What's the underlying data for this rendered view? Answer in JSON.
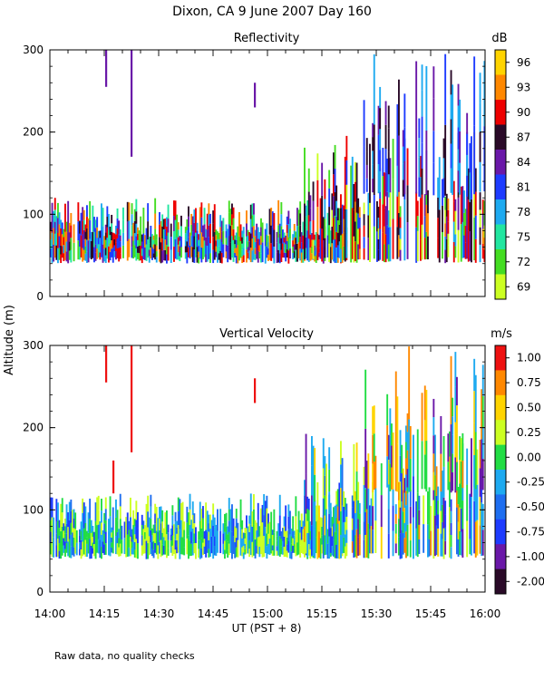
{
  "title": "Dixon, CA  9 June 2007  Day 160",
  "ylabel": "Altitude  (m)",
  "xlabel": "UT  (PST + 8)",
  "footnote": "Raw data, no quality checks",
  "x_ticks": [
    "14:00",
    "14:15",
    "14:30",
    "14:45",
    "15:00",
    "15:15",
    "15:30",
    "15:45",
    "16:00"
  ],
  "x_range_minutes": [
    0,
    120
  ],
  "chart_data": [
    {
      "type": "heatmap",
      "title": "Reflectivity",
      "units": "dB",
      "ylim": [
        0,
        300
      ],
      "y_ticks": [
        0,
        100,
        200,
        300
      ],
      "colorbar_labels": [
        "96",
        "93",
        "90",
        "87",
        "84",
        "81",
        "78",
        "75",
        "72",
        "69"
      ],
      "colorbar_colors": [
        "#ffd400",
        "#ff8800",
        "#ee0000",
        "#2a0a28",
        "#6a18a8",
        "#1e3cff",
        "#1eaaf0",
        "#22e6a0",
        "#44dd22",
        "#ccff22"
      ],
      "bands": [
        {
          "alt": [
            40,
            120
          ],
          "t_min": 0,
          "t_max": 82,
          "density": 0.92,
          "levels": [
            8,
            7,
            6,
            5,
            4,
            3,
            2,
            1
          ]
        },
        {
          "alt": [
            40,
            200
          ],
          "t_min": 70,
          "t_max": 120,
          "density": 0.6,
          "levels": [
            6,
            5,
            4,
            3,
            3,
            2,
            2,
            1,
            9,
            8
          ]
        },
        {
          "alt": [
            120,
            300
          ],
          "t_min": 86,
          "t_max": 120,
          "density": 0.3,
          "levels": [
            6,
            5,
            4,
            3
          ]
        }
      ],
      "streaks": [
        {
          "t": 15.5,
          "alt": [
            255,
            300
          ],
          "level": 4
        },
        {
          "t": 22.5,
          "alt": [
            170,
            300
          ],
          "level": 4
        },
        {
          "t": 56.5,
          "alt": [
            230,
            260
          ],
          "level": 4
        }
      ]
    },
    {
      "type": "heatmap",
      "title": "Vertical Velocity",
      "units": "m/s",
      "ylim": [
        0,
        300
      ],
      "y_ticks": [
        0,
        100,
        200,
        300
      ],
      "colorbar_labels": [
        "1.00",
        "0.75",
        "0.50",
        "0.25",
        "0.00",
        "-0.25",
        "-0.50",
        "-0.75",
        "-1.00",
        "-2.00"
      ],
      "colorbar_colors": [
        "#ee1111",
        "#ff8800",
        "#ffd400",
        "#ccff22",
        "#22dd44",
        "#1eaaf0",
        "#1e6ef0",
        "#1e3cff",
        "#6a18a8",
        "#2a0a28"
      ],
      "bands": [
        {
          "alt": [
            40,
            120
          ],
          "t_min": 0,
          "t_max": 82,
          "density": 0.92,
          "levels": [
            6,
            5,
            4,
            3,
            7,
            5,
            4,
            3
          ]
        },
        {
          "alt": [
            40,
            200
          ],
          "t_min": 70,
          "t_max": 120,
          "density": 0.6,
          "levels": [
            5,
            4,
            3,
            6,
            2,
            1,
            7,
            8,
            4,
            5
          ]
        },
        {
          "alt": [
            120,
            300
          ],
          "t_min": 86,
          "t_max": 120,
          "density": 0.3,
          "levels": [
            2,
            1,
            4,
            5,
            8
          ]
        }
      ],
      "streaks": [
        {
          "t": 15.5,
          "alt": [
            255,
            300
          ],
          "level": 0
        },
        {
          "t": 22.5,
          "alt": [
            170,
            300
          ],
          "level": 0
        },
        {
          "t": 56.5,
          "alt": [
            230,
            260
          ],
          "level": 0
        },
        {
          "t": 17.5,
          "alt": [
            120,
            160
          ],
          "level": 0
        }
      ]
    }
  ]
}
